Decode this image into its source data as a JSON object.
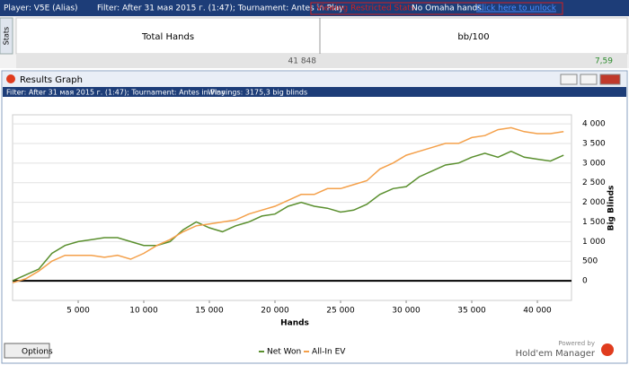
{
  "top_bar": {
    "player": "Player: V5E (Alias)",
    "filter": "Filter: After 31 мая 2015 г. (1:47); Tournament: Antes in Play",
    "warning": "Viewing Restricted Stats",
    "omaha": "No Omaha hands.",
    "unlock": "Click here to unlock"
  },
  "stats": {
    "tab": "Stats",
    "headers": [
      "Total Hands",
      "bb/100"
    ],
    "row": [
      "41 848",
      "7,59"
    ]
  },
  "window": {
    "title": "Results Graph",
    "filter": "Filter: After 31 мая 2015 г. (1:47); Tournament: Antes in Play",
    "winnings": "Winnings: 3175,3 big blinds",
    "options": "Options",
    "powered": "Powered by",
    "brand": "Hold'em Manager"
  },
  "chart_data": {
    "type": "line",
    "x_label": "Hands",
    "y_label": "Big Blinds",
    "grid": true,
    "x": [
      0,
      1000,
      2000,
      3000,
      4000,
      5000,
      6000,
      7000,
      8000,
      9000,
      10000,
      11000,
      12000,
      13000,
      14000,
      15000,
      16000,
      17000,
      18000,
      19000,
      20000,
      21000,
      22000,
      23000,
      24000,
      25000,
      26000,
      27000,
      28000,
      29000,
      30000,
      31000,
      32000,
      33000,
      34000,
      35000,
      36000,
      37000,
      38000,
      39000,
      40000,
      41000,
      42000
    ],
    "xlim": [
      0,
      42600
    ],
    "xticks": [
      {
        "value": 5000,
        "label": "5 000"
      },
      {
        "value": 10000,
        "label": "10 000"
      },
      {
        "value": 15000,
        "label": "15 000"
      },
      {
        "value": 20000,
        "label": "20 000"
      },
      {
        "value": 25000,
        "label": "25 000"
      },
      {
        "value": 30000,
        "label": "30 000"
      },
      {
        "value": 35000,
        "label": "35 000"
      },
      {
        "value": 40000,
        "label": "40 000"
      }
    ],
    "ylim": [
      -500,
      4230
    ],
    "yticks": [
      0,
      500,
      {
        "value": 1000,
        "label": "1 000"
      },
      {
        "value": 1500,
        "label": "1 500"
      },
      {
        "value": 2000,
        "label": "2 000"
      },
      {
        "value": 2500,
        "label": "2 500"
      },
      {
        "value": 3000,
        "label": "3 000"
      },
      {
        "value": 3500,
        "label": "3 500"
      },
      {
        "value": 4000,
        "label": "4 000"
      }
    ],
    "series": [
      {
        "name": "Net Won",
        "color": "#5a8f2e",
        "values": [
          0,
          150,
          300,
          700,
          900,
          1000,
          1050,
          1100,
          1100,
          1000,
          900,
          900,
          1000,
          1300,
          1500,
          1350,
          1250,
          1400,
          1500,
          1650,
          1700,
          1900,
          2000,
          1900,
          1850,
          1750,
          1800,
          1950,
          2200,
          2350,
          2400,
          2650,
          2800,
          2950,
          3000,
          3150,
          3250,
          3150,
          3300,
          3150,
          3100,
          3050,
          3200
        ]
      },
      {
        "name": "All-In EV",
        "color": "#f4a04a",
        "values": [
          -50,
          50,
          250,
          500,
          650,
          650,
          650,
          600,
          650,
          550,
          700,
          900,
          1050,
          1250,
          1400,
          1450,
          1500,
          1550,
          1700,
          1800,
          1900,
          2050,
          2200,
          2200,
          2350,
          2350,
          2450,
          2550,
          2850,
          3000,
          3200,
          3300,
          3400,
          3500,
          3500,
          3650,
          3700,
          3850,
          3900,
          3800,
          3750,
          3750,
          3800
        ]
      }
    ]
  }
}
